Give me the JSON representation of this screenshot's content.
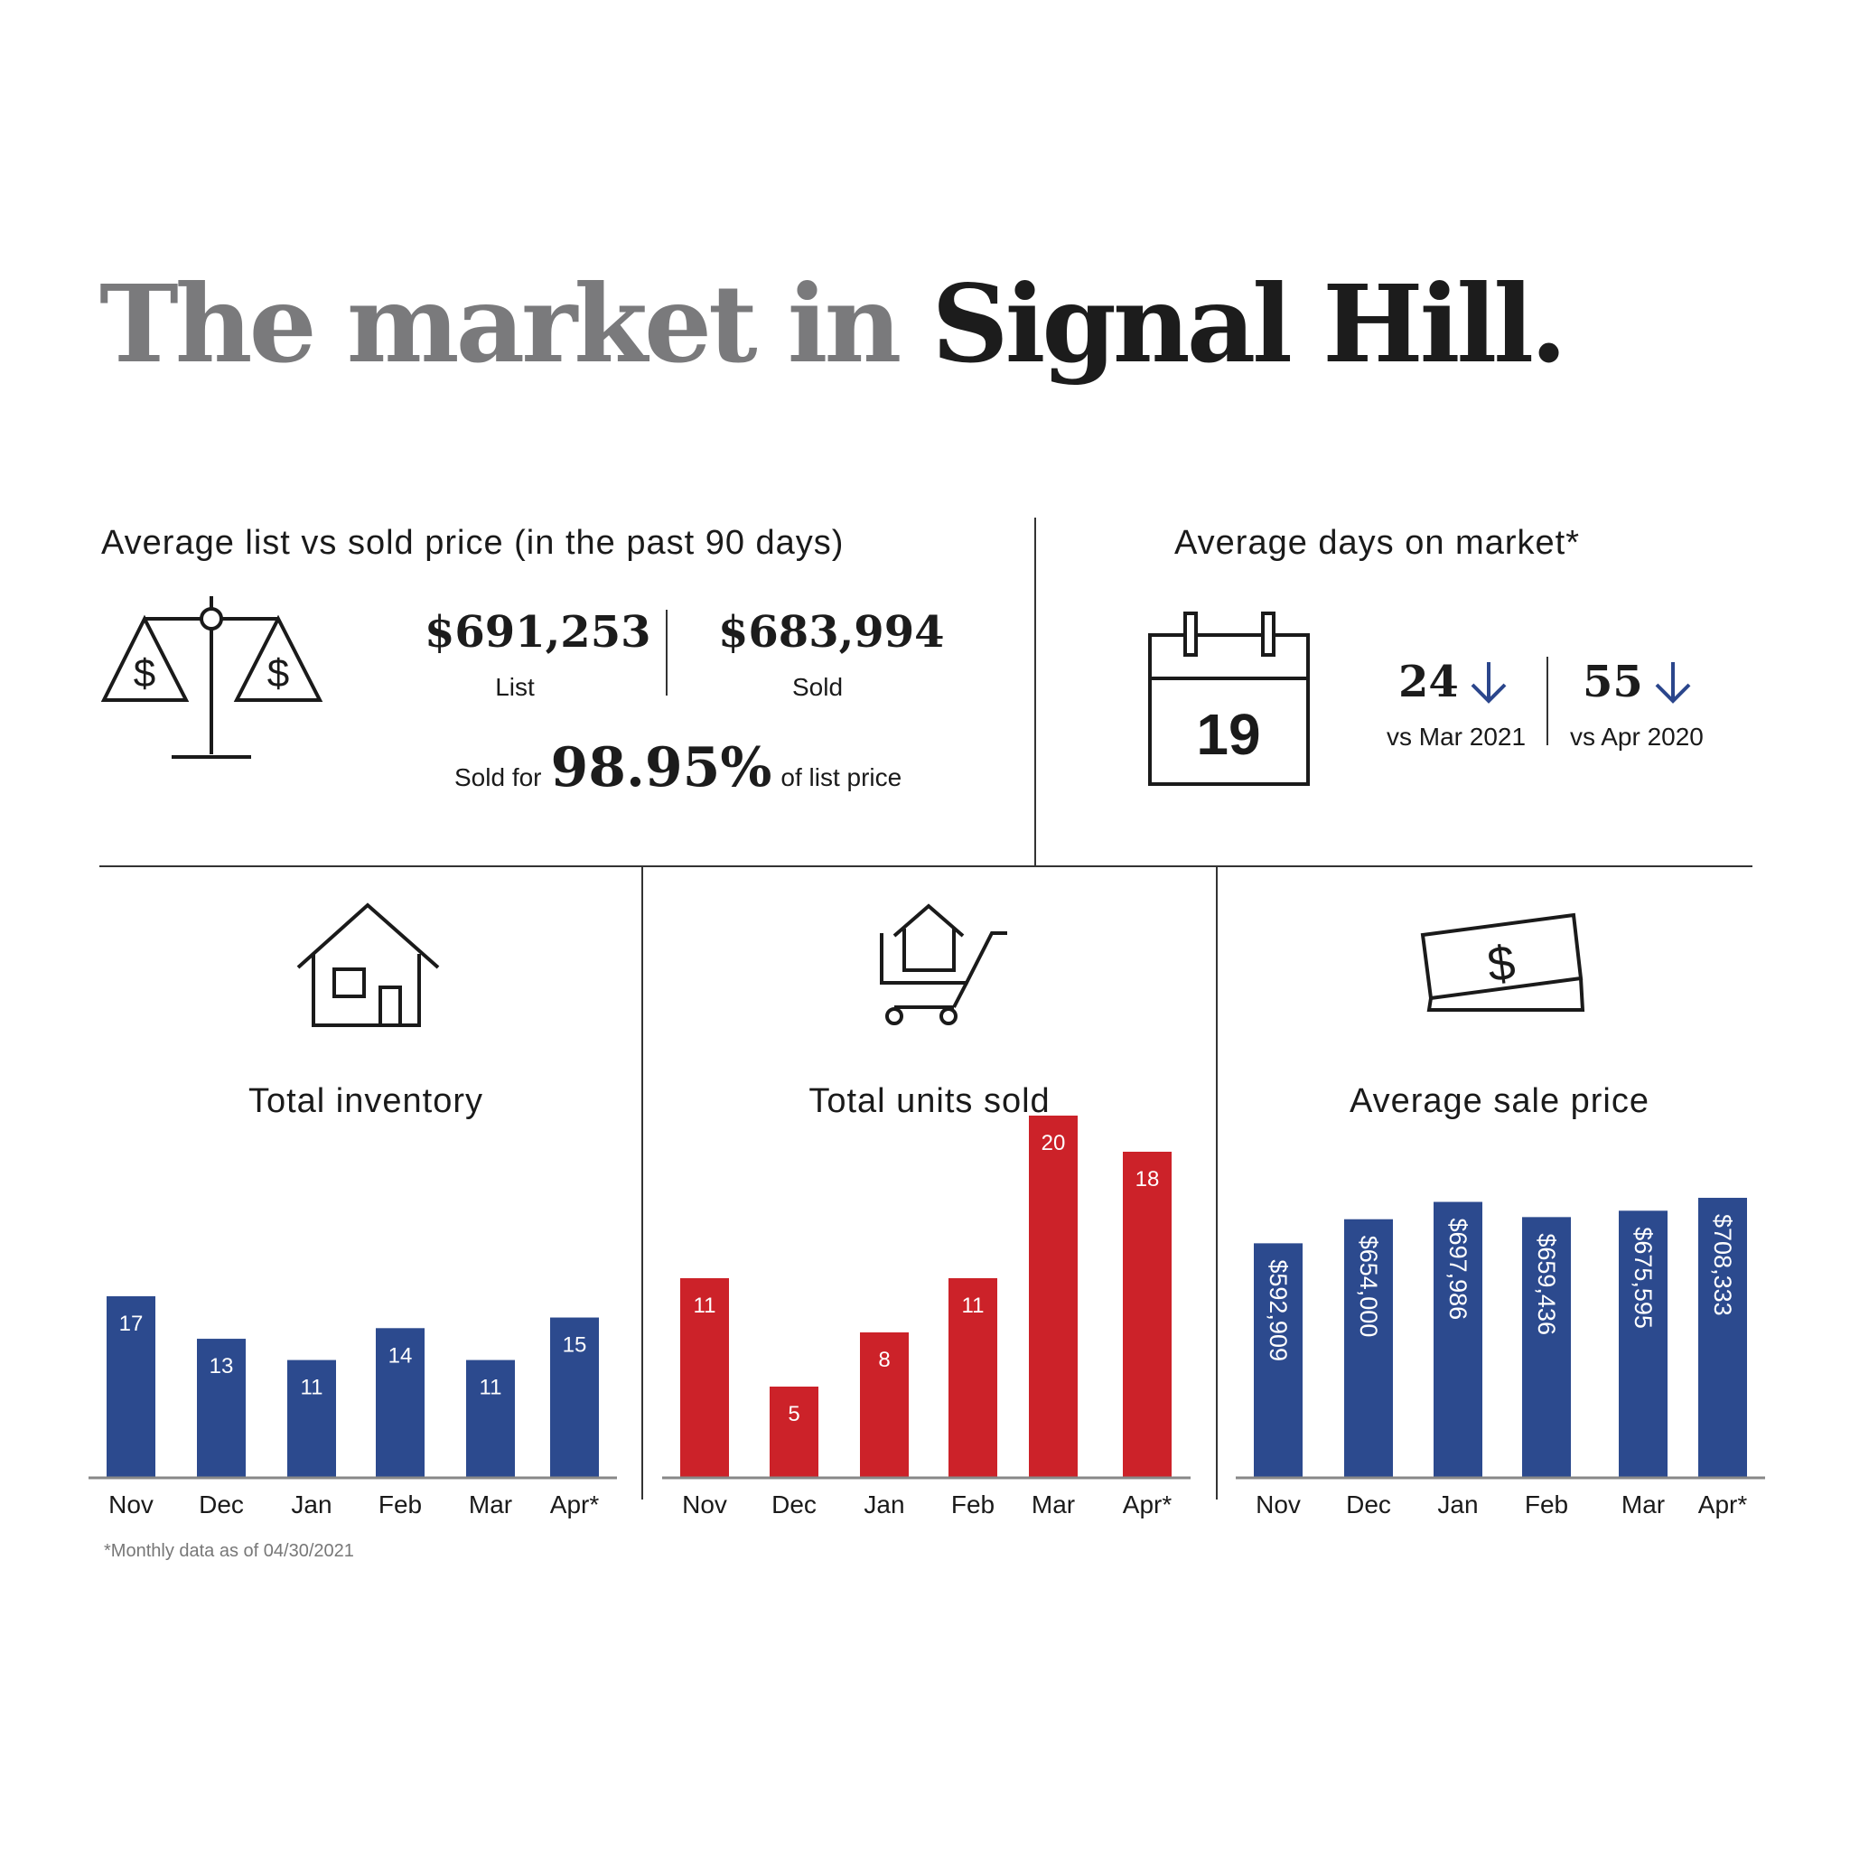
{
  "title": {
    "part1": "The market in",
    "part2": "Signal Hill."
  },
  "price_section": {
    "heading": "Average list vs sold price (in the past 90 days)",
    "list_value": "$691,253",
    "list_label": "List",
    "sold_value": "$683,994",
    "sold_label": "Sold",
    "sold_for_prefix": "Sold for",
    "sold_for_percent": "98.95%",
    "sold_for_suffix": "of list price",
    "icon": "scale-icon"
  },
  "days_section": {
    "heading": "Average days on market*",
    "calendar_value": "19",
    "compare1_value": "24",
    "compare1_label": "vs Mar 2021",
    "compare2_value": "55",
    "compare2_label": "vs Apr 2020",
    "icon": "calendar-icon",
    "arrow_color": "#2b468c"
  },
  "footnote": "*Monthly data as of 04/30/2021",
  "colors": {
    "blue": "#2c4a8e",
    "red": "#cc2229",
    "axis": "#888888"
  },
  "chart_data": [
    {
      "type": "bar",
      "title": "Total inventory",
      "icon": "house-icon",
      "categories": [
        "Nov",
        "Dec",
        "Jan",
        "Feb",
        "Mar",
        "Apr*"
      ],
      "values": [
        17,
        13,
        11,
        14,
        11,
        15
      ],
      "labels": [
        "17",
        "13",
        "11",
        "14",
        "11",
        "15"
      ],
      "color": "#2c4a8e",
      "ylim": [
        0,
        34
      ]
    },
    {
      "type": "bar",
      "title": "Total units sold",
      "icon": "cart-house-icon",
      "categories": [
        "Nov",
        "Dec",
        "Jan",
        "Feb",
        "Mar",
        "Apr*"
      ],
      "values": [
        11,
        5,
        8,
        11,
        20,
        18
      ],
      "labels": [
        "11",
        "5",
        "8",
        "11",
        "20",
        "18"
      ],
      "color": "#cc2229",
      "ylim": [
        0,
        20
      ]
    },
    {
      "type": "bar",
      "title": "Average sale price",
      "icon": "money-icon",
      "categories": [
        "Nov",
        "Dec",
        "Jan",
        "Feb",
        "Mar",
        "Apr*"
      ],
      "values": [
        592909,
        654000,
        697986,
        659436,
        675595,
        708333
      ],
      "labels": [
        "$592,909",
        "$654,000",
        "$697,986",
        "$659,436",
        "$675,595",
        "$708,333"
      ],
      "color": "#2c4a8e",
      "ylim": [
        0,
        917000
      ]
    }
  ]
}
